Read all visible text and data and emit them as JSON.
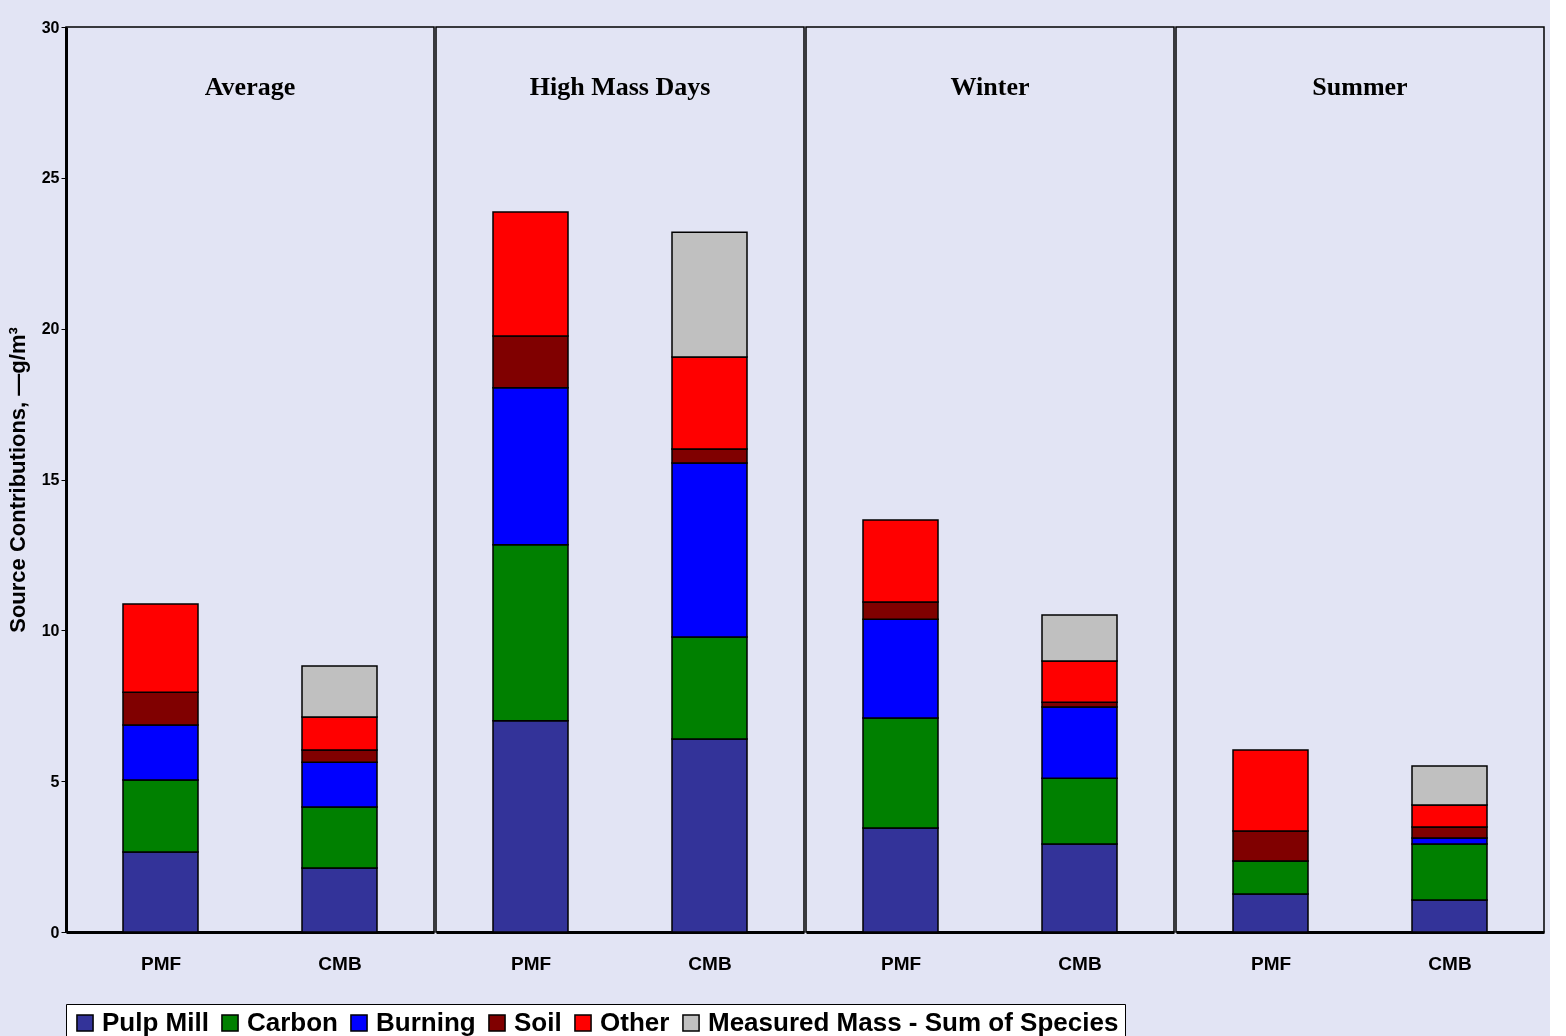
{
  "chart_data": [
    {
      "type": "bar",
      "stacked": true,
      "title": "Average",
      "ylabel": "Source Contributions, —g/m³",
      "categories": [
        "PMF",
        "CMB"
      ],
      "ylim": [
        0,
        30
      ],
      "yticks": [
        0,
        5,
        10,
        15,
        20,
        25,
        30
      ],
      "grid": false,
      "legend": "bottom",
      "series": [
        {
          "name": "Pulp Mill",
          "color": "#333399",
          "values": [
            2.65,
            2.12
          ]
        },
        {
          "name": "Carbon",
          "color": "#008000",
          "values": [
            2.39,
            2.02
          ]
        },
        {
          "name": "Burning",
          "color": "#0000ff",
          "values": [
            1.82,
            1.49
          ]
        },
        {
          "name": "Soil",
          "color": "#800000",
          "values": [
            1.09,
            0.4
          ]
        },
        {
          "name": "Other",
          "color": "#ff0000",
          "values": [
            2.92,
            1.1
          ]
        },
        {
          "name": "Measured Mass - Sum of Species",
          "color": "#c0c0c0",
          "values": [
            null,
            1.69
          ]
        }
      ]
    },
    {
      "type": "bar",
      "stacked": true,
      "title": "High Mass Days",
      "categories": [
        "PMF",
        "CMB"
      ],
      "ylim": [
        0,
        30
      ],
      "tick_labels": "x",
      "grid": false,
      "series": [
        {
          "name": "Pulp Mill",
          "color": "#333399",
          "values": [
            7.0,
            6.4
          ]
        },
        {
          "name": "Carbon",
          "color": "#008000",
          "values": [
            5.84,
            3.38
          ]
        },
        {
          "name": "Burning",
          "color": "#0000ff",
          "values": [
            5.2,
            5.77
          ]
        },
        {
          "name": "Soil",
          "color": "#800000",
          "values": [
            1.72,
            0.46
          ]
        },
        {
          "name": "Other",
          "color": "#ff0000",
          "values": [
            4.11,
            3.05
          ]
        },
        {
          "name": "Measured Mass - Sum of Species",
          "color": "#c0c0c0",
          "values": [
            null,
            4.14
          ]
        }
      ]
    },
    {
      "type": "bar",
      "stacked": true,
      "title": "Winter",
      "categories": [
        "PMF",
        "CMB"
      ],
      "ylim": [
        0,
        30
      ],
      "tick_labels": "x",
      "grid": false,
      "series": [
        {
          "name": "Pulp Mill",
          "color": "#333399",
          "values": [
            3.45,
            2.92
          ]
        },
        {
          "name": "Carbon",
          "color": "#008000",
          "values": [
            3.64,
            2.18
          ]
        },
        {
          "name": "Burning",
          "color": "#0000ff",
          "values": [
            3.28,
            2.36
          ]
        },
        {
          "name": "Soil",
          "color": "#800000",
          "values": [
            0.57,
            0.16
          ]
        },
        {
          "name": "Other",
          "color": "#ff0000",
          "values": [
            2.72,
            1.36
          ]
        },
        {
          "name": "Measured Mass - Sum of Species",
          "color": "#c0c0c0",
          "values": [
            null,
            1.53
          ]
        }
      ]
    },
    {
      "type": "bar",
      "stacked": true,
      "title": "Summer",
      "categories": [
        "PMF",
        "CMB"
      ],
      "ylim": [
        0,
        30
      ],
      "tick_labels": "x",
      "grid": false,
      "series": [
        {
          "name": "Pulp Mill",
          "color": "#333399",
          "values": [
            1.26,
            1.06
          ]
        },
        {
          "name": "Carbon",
          "color": "#008000",
          "values": [
            1.09,
            1.86
          ]
        },
        {
          "name": "Burning",
          "color": "#0000ff",
          "values": [
            null,
            0.2
          ]
        },
        {
          "name": "Soil",
          "color": "#800000",
          "values": [
            1.0,
            0.36
          ]
        },
        {
          "name": "Other",
          "color": "#ff0000",
          "values": [
            2.68,
            0.73
          ]
        },
        {
          "name": "Measured Mass - Sum of Species",
          "color": "#c0c0c0",
          "values": [
            null,
            1.29
          ]
        }
      ]
    }
  ]
}
